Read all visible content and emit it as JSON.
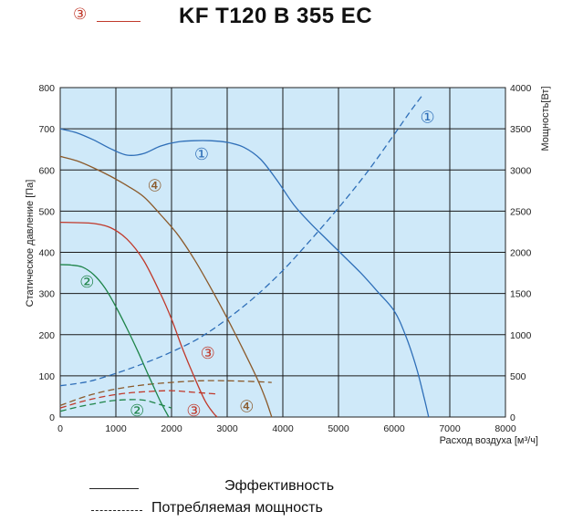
{
  "title": "KF T120 B 355 EC",
  "header_marker": "③",
  "legend": {
    "efficiency": "Эффективность",
    "power": "Потребляемая мощность"
  },
  "chart_data": {
    "type": "line",
    "title": "KF T120 B 355 EC",
    "xlabel": "Расход воздуха [м³/ч]",
    "ylabel": "Статическое давление [Па]",
    "y2label": "Мощность[Вт]",
    "xlim": [
      0,
      8000
    ],
    "ylim": [
      0,
      800
    ],
    "y2lim": [
      0,
      4000
    ],
    "xticks": [
      0,
      1000,
      2000,
      3000,
      4000,
      5000,
      6000,
      7000,
      8000
    ],
    "yticks": [
      0,
      100,
      200,
      300,
      400,
      500,
      600,
      700,
      800
    ],
    "y2ticks": [
      0,
      500,
      1000,
      1500,
      2000,
      2500,
      3000,
      3500,
      4000
    ],
    "grid": true,
    "background": "#cfe9f9",
    "series": [
      {
        "name": "①",
        "kind": "pressure",
        "axis": "left",
        "color": "#2f6fb8",
        "label_at": [
          2540,
          638
        ],
        "x": [
          0,
          300,
          600,
          900,
          1200,
          1500,
          1800,
          2100,
          2400,
          2700,
          3000,
          3300,
          3600,
          3900,
          4200,
          4500,
          4800,
          5100,
          5400,
          5700,
          6000,
          6200,
          6400,
          6550,
          6620
        ],
        "y": [
          700,
          690,
          673,
          652,
          636,
          640,
          658,
          668,
          671,
          671,
          667,
          655,
          626,
          574,
          515,
          470,
          430,
          390,
          350,
          305,
          258,
          200,
          120,
          40,
          0
        ]
      },
      {
        "name": "①",
        "kind": "power",
        "axis": "right",
        "color": "#2f6fb8",
        "label_at": [
          6600,
          3640
        ],
        "x": [
          0,
          500,
          1000,
          1500,
          2000,
          2500,
          3000,
          3500,
          4000,
          4500,
          5000,
          5500,
          6000,
          6300,
          6500
        ],
        "y": [
          380,
          430,
          530,
          650,
          790,
          960,
          1190,
          1460,
          1780,
          2150,
          2540,
          2960,
          3430,
          3720,
          3900
        ]
      },
      {
        "name": "④",
        "kind": "pressure",
        "axis": "left",
        "color": "#8b5a2b",
        "label_at": [
          1700,
          562
        ],
        "x": [
          0,
          300,
          600,
          900,
          1200,
          1500,
          1800,
          2100,
          2400,
          2700,
          3000,
          3300,
          3550,
          3700,
          3800
        ],
        "y": [
          633,
          622,
          605,
          585,
          562,
          535,
          492,
          445,
          385,
          315,
          240,
          160,
          90,
          40,
          0
        ]
      },
      {
        "name": "④",
        "kind": "power",
        "axis": "right",
        "color": "#8b5a2b",
        "label_at": [
          3350,
          130
        ],
        "x": [
          0,
          500,
          1000,
          1500,
          2000,
          2500,
          3000,
          3500,
          3800
        ],
        "y": [
          140,
          260,
          340,
          390,
          420,
          440,
          440,
          430,
          420
        ]
      },
      {
        "name": "③",
        "kind": "pressure",
        "axis": "left",
        "color": "#c0392b",
        "label_at": [
          2650,
          155
        ],
        "x": [
          0,
          300,
          600,
          900,
          1200,
          1500,
          1800,
          2000,
          2200,
          2400,
          2600,
          2750,
          2820
        ],
        "y": [
          473,
          472,
          470,
          460,
          432,
          380,
          300,
          238,
          165,
          100,
          40,
          10,
          0
        ]
      },
      {
        "name": "③",
        "kind": "power",
        "axis": "right",
        "color": "#c0392b",
        "label_at": [
          2400,
          80
        ],
        "x": [
          0,
          400,
          800,
          1200,
          1600,
          2000,
          2400,
          2800
        ],
        "y": [
          110,
          190,
          250,
          290,
          310,
          320,
          300,
          280
        ]
      },
      {
        "name": "②",
        "kind": "pressure",
        "axis": "left",
        "color": "#1e8449",
        "label_at": [
          480,
          328
        ],
        "x": [
          0,
          200,
          400,
          600,
          800,
          1000,
          1200,
          1400,
          1600,
          1800,
          1950
        ],
        "y": [
          370,
          369,
          364,
          346,
          314,
          268,
          215,
          158,
          97,
          38,
          0
        ]
      },
      {
        "name": "②",
        "kind": "power",
        "axis": "right",
        "color": "#1e8449",
        "label_at": [
          1380,
          75
        ],
        "x": [
          0,
          300,
          600,
          900,
          1200,
          1500,
          1800,
          2000
        ],
        "y": [
          70,
          120,
          160,
          195,
          210,
          205,
          150,
          110
        ]
      }
    ]
  }
}
